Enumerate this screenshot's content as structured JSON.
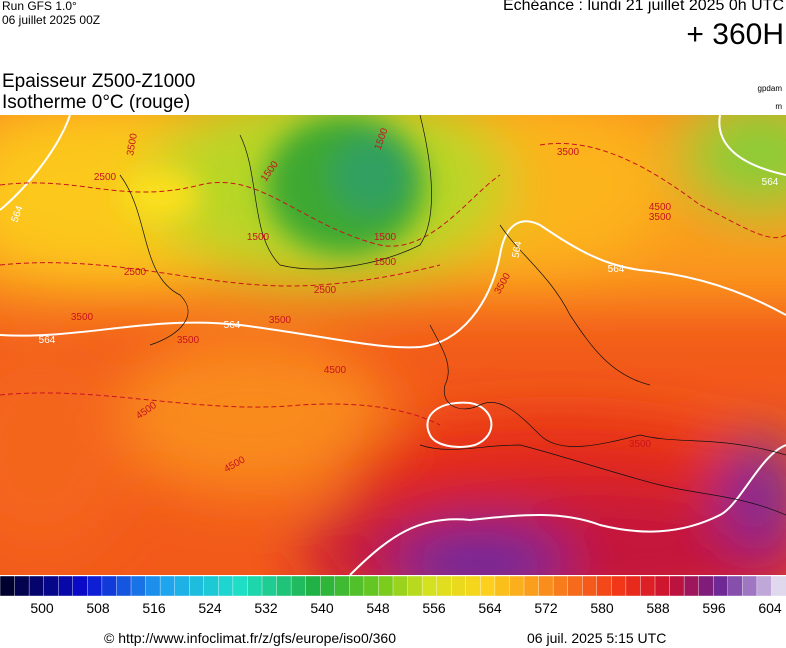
{
  "header": {
    "run": "Run GFS 1.0°",
    "date": "06 juillet 2025 00Z",
    "echeance": "Echéance : lundi 21 juillet 2025 0h UTC",
    "lead": "+ 360H"
  },
  "title": {
    "line1": "Epaisseur Z500-Z1000",
    "line2": "Isotherme 0°C (rouge)"
  },
  "units": [
    "gpdam",
    "m"
  ],
  "map": {
    "contour_labels": [
      "3500",
      "2500",
      "564",
      "2500",
      "1500",
      "1500",
      "1500",
      "1500",
      "2500",
      "3500",
      "564",
      "564",
      "3500",
      "3500",
      "564",
      "3500",
      "3500",
      "4500",
      "4500",
      "4500",
      "4500",
      "564",
      "1500",
      "3500",
      "564",
      "3500"
    ]
  },
  "colorbar": {
    "labels": [
      500,
      508,
      516,
      524,
      532,
      540,
      548,
      556,
      564,
      572,
      580,
      588,
      596,
      604
    ]
  },
  "footer": {
    "url": "© http://www.infoclimat.fr/z/gfs/europe/iso0/360",
    "timestamp": "06 juil. 2025  5:15 UTC"
  }
}
